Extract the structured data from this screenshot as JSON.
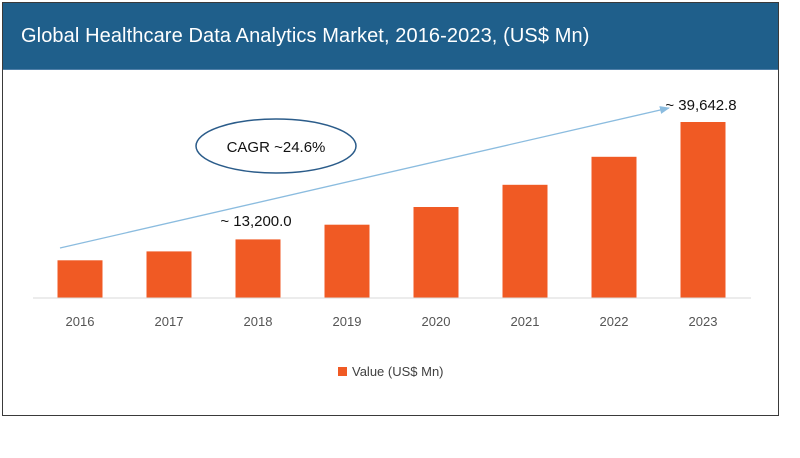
{
  "header": {
    "title": "Global Healthcare Data Analytics Market, 2016-2023, (US$ Mn)"
  },
  "colors": {
    "header_bg": "#1f5f8b",
    "bar": "#f05a24",
    "trend_line": "#8bbcdf",
    "ellipse": "#2b5c8a",
    "axis_text": "#555555"
  },
  "chart_data": {
    "type": "bar",
    "categories": [
      "2016",
      "2017",
      "2018",
      "2019",
      "2020",
      "2021",
      "2022",
      "2023"
    ],
    "series": [
      {
        "name": "Value (US$ Mn)",
        "values": [
          8500,
          10500,
          13200,
          16500,
          20500,
          25500,
          31800,
          39642.8
        ]
      }
    ],
    "ylim": [
      0,
      40000
    ],
    "grid": false,
    "legend": "bottom-center",
    "annotations": {
      "cagr": "CAGR ~24.6%",
      "label_2018": "~ 13,200.0",
      "label_2023": "~ 39,642.8"
    }
  }
}
